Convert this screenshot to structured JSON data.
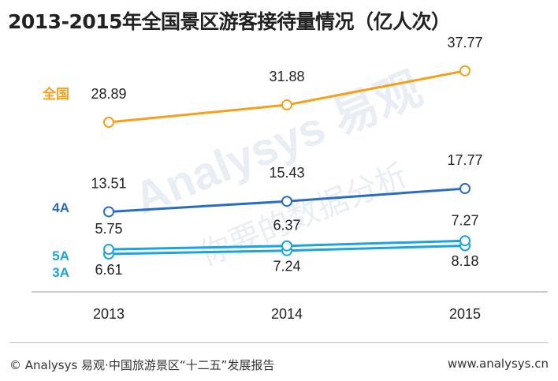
{
  "title": "2013-2015年全国景区游客接待量情况（亿人次）",
  "footer": {
    "source": "© Analysys 易观·中国旅游景区“十二五”发展报告",
    "site": "www.analysys.cn"
  },
  "watermark": {
    "brand": "Analysys 易观",
    "slogan": "你要的数据分析"
  },
  "colors": {
    "全国": "#f5a01a",
    "4A": "#2a6cc4",
    "5A": "#1da3e0",
    "3A": "#1da3e0",
    "axis": "#9a9a9a"
  },
  "chart_data": {
    "type": "line",
    "title": "2013-2015年全国景区游客接待量情况（亿人次）",
    "categories": [
      "2013",
      "2014",
      "2015"
    ],
    "series": [
      {
        "name": "全国",
        "values": [
          28.89,
          31.88,
          37.77
        ]
      },
      {
        "name": "4A",
        "values": [
          13.51,
          15.43,
          17.77
        ]
      },
      {
        "name": "5A",
        "values": [
          5.75,
          6.37,
          7.27
        ]
      },
      {
        "name": "3A",
        "values": [
          6.61,
          7.24,
          8.18
        ]
      }
    ],
    "grid": false,
    "legend": "inline-left"
  }
}
